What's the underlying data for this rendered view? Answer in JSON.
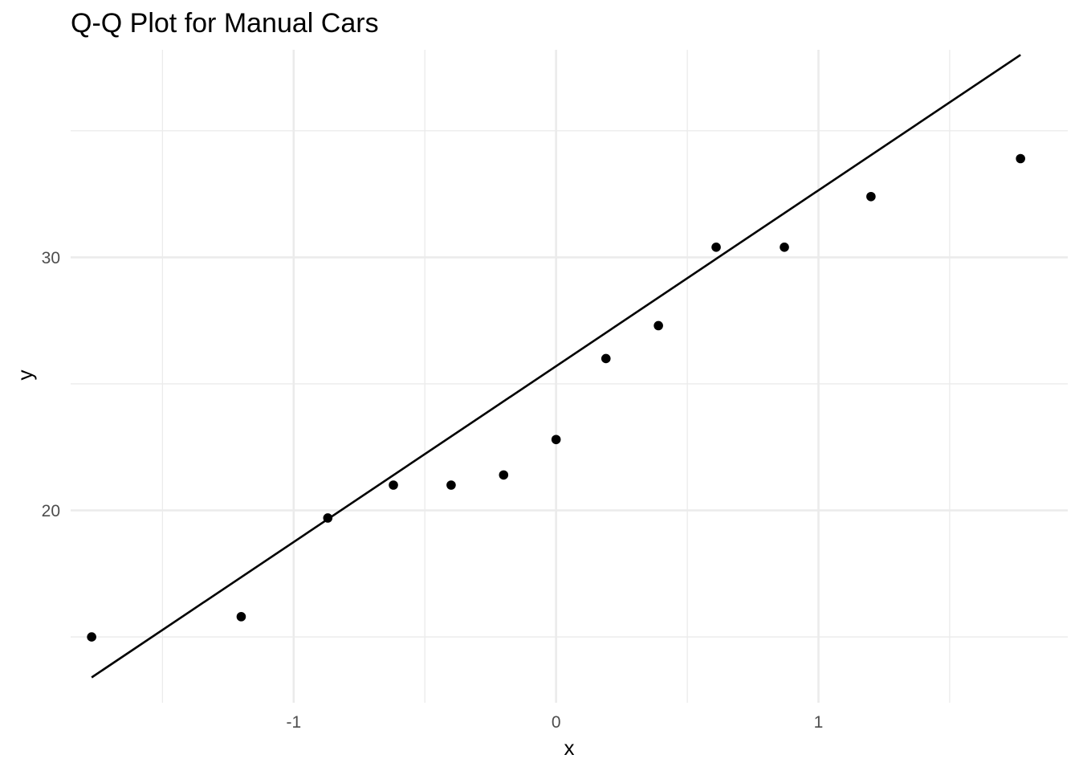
{
  "chart_data": {
    "type": "scatter",
    "title": "Q-Q Plot for Manual Cars",
    "xlabel": "x",
    "ylabel": "y",
    "xlim": [
      -1.85,
      1.95
    ],
    "ylim": [
      12.4,
      38.2
    ],
    "x_major_ticks": [
      -1,
      0,
      1
    ],
    "x_tick_labels": [
      "-1",
      "0",
      "1"
    ],
    "x_minor_ticks": [
      -1.5,
      -0.5,
      0.5,
      1.5
    ],
    "y_major_ticks": [
      20,
      30
    ],
    "y_tick_labels": [
      "20",
      "30"
    ],
    "y_minor_ticks": [
      15,
      25,
      35
    ],
    "grid": true,
    "legend": "none",
    "points": {
      "x": [
        -1.77,
        -1.2,
        -0.87,
        -0.62,
        -0.4,
        -0.2,
        0.0,
        0.19,
        0.39,
        0.61,
        0.87,
        1.2,
        1.77
      ],
      "y": [
        15.0,
        15.8,
        19.7,
        21.0,
        21.0,
        21.4,
        22.8,
        26.0,
        27.3,
        30.4,
        30.4,
        32.4,
        33.9
      ]
    },
    "reference_line": {
      "x": [
        -1.77,
        1.77
      ],
      "y": [
        13.4,
        38.0
      ]
    },
    "colors": {
      "points": "#000000",
      "line": "#000000",
      "grid": "#ebebeb",
      "tick_text": "#4d4d4d"
    }
  }
}
